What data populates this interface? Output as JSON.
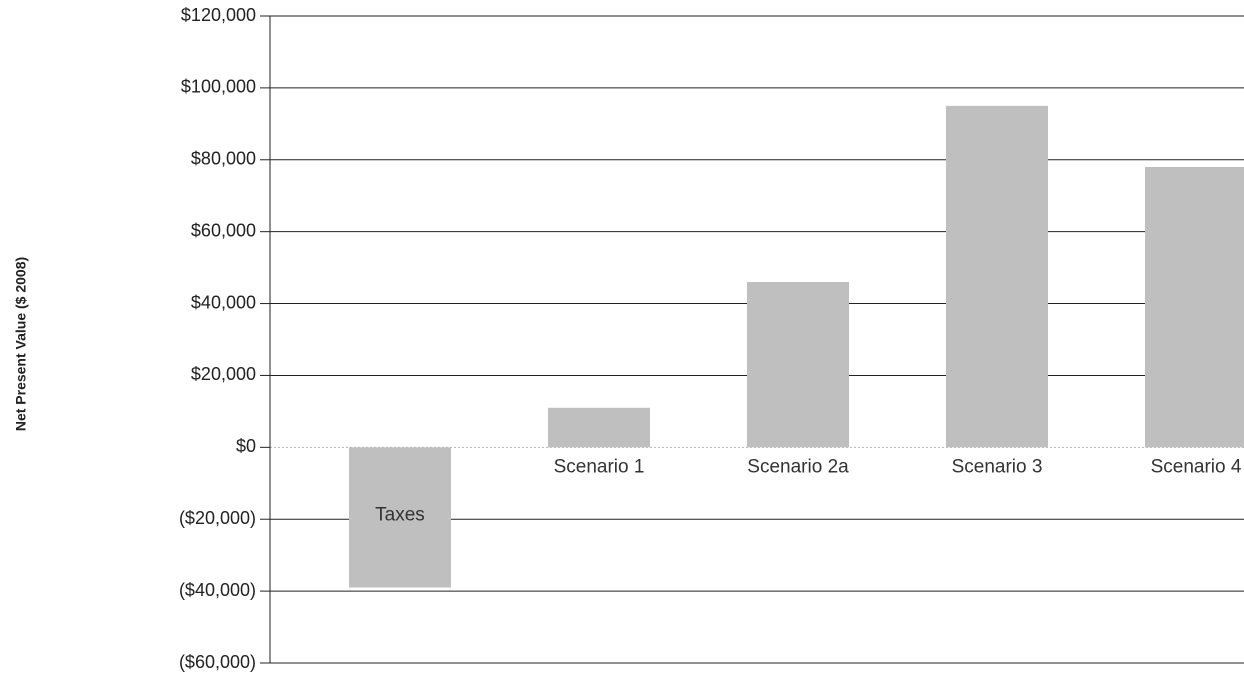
{
  "chart_data": {
    "type": "bar",
    "title": "",
    "xlabel": "",
    "ylabel": "Net Present Value ($ 2008)",
    "categories": [
      "Taxes",
      "Scenario 1",
      "Scenario 2a",
      "Scenario 3",
      "Scenario 4"
    ],
    "values": [
      -39000,
      11000,
      46000,
      95000,
      78000
    ],
    "ylim": [
      -60000,
      120000
    ],
    "yticks": [
      120000,
      100000,
      80000,
      60000,
      40000,
      20000,
      0,
      -20000,
      -40000,
      -60000
    ],
    "ytick_labels": [
      "$120,000",
      "$100,000",
      "$80,000",
      "$60,000",
      "$40,000",
      "$20,000",
      "$0",
      "($20,000)",
      "($40,000)",
      "($60,000)"
    ],
    "grid": true,
    "legend": "none",
    "colors": {
      "bar": "#bfbfbf",
      "grid": "#222222",
      "zero_line": "#b3b3b3",
      "text": "#222222"
    }
  }
}
